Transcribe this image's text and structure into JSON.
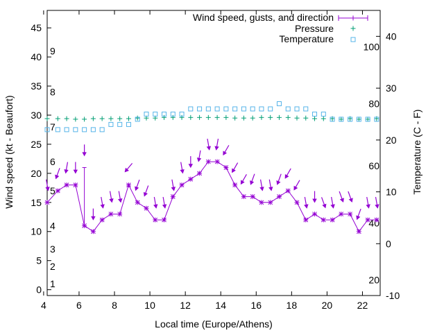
{
  "chart_data": {
    "type": "line",
    "title": "",
    "xlabel": "Local time (Europe/Athens)",
    "ylabel": "Wind speed (kt - Beaufort)",
    "y2label": "Temperature (C - F)",
    "xlim": [
      4.2,
      23.0
    ],
    "ylim": [
      -1,
      48
    ],
    "y2lim": [
      -10,
      45
    ],
    "x_ticks": [
      4,
      6,
      8,
      10,
      12,
      14,
      16,
      18,
      20,
      22
    ],
    "y_ticks": [
      0,
      5,
      10,
      15,
      20,
      25,
      30,
      35,
      40,
      45
    ],
    "y2_ticks": [
      -10,
      0,
      10,
      20,
      30,
      40
    ],
    "beaufort_labels": [
      {
        "kt": 1,
        "label": "1"
      },
      {
        "kt": 4,
        "label": "2"
      },
      {
        "kt": 7,
        "label": "3"
      },
      {
        "kt": 11,
        "label": "4"
      },
      {
        "kt": 17,
        "label": "5"
      },
      {
        "kt": 22,
        "label": "6"
      },
      {
        "kt": 28,
        "label": "7"
      },
      {
        "kt": 34,
        "label": "8"
      },
      {
        "kt": 41,
        "label": "9"
      }
    ],
    "fahrenheit_labels": [
      {
        "c": -7,
        "label": "20"
      },
      {
        "c": 4,
        "label": "40"
      },
      {
        "c": 15,
        "label": "60"
      },
      {
        "c": 27,
        "label": "80"
      },
      {
        "c": 38,
        "label": "100"
      }
    ],
    "legend_placement": "top-right",
    "grid": false,
    "colors": {
      "wind": "#9400d3",
      "pressure": "#009e73",
      "temperature": "#56b4e9"
    },
    "series": [
      {
        "name": "Wind speed, gusts, and direction",
        "type": "line",
        "axis": "left",
        "x": [
          4.2,
          4.8,
          5.3,
          5.8,
          6.3,
          6.8,
          7.3,
          7.8,
          8.3,
          8.8,
          9.3,
          9.8,
          10.3,
          10.8,
          11.3,
          11.8,
          12.3,
          12.8,
          13.3,
          13.8,
          14.3,
          14.8,
          15.3,
          15.8,
          16.3,
          16.8,
          17.3,
          17.8,
          18.3,
          18.8,
          19.3,
          19.8,
          20.3,
          20.8,
          21.3,
          21.8,
          22.3,
          22.8
        ],
        "values": [
          15,
          17,
          18,
          18,
          11,
          10,
          12,
          13,
          13,
          18,
          15,
          14,
          12,
          12,
          16,
          18,
          19,
          20,
          22,
          22,
          21,
          18,
          16,
          16,
          15,
          15,
          16,
          17,
          15,
          12,
          13,
          12,
          12,
          13,
          13,
          10,
          12,
          12
        ],
        "gusts": [
          18,
          20,
          21,
          21,
          24,
          13,
          15,
          16,
          16,
          21,
          18,
          17,
          15,
          15,
          18,
          21,
          22,
          23,
          25,
          25,
          24,
          21,
          19,
          19,
          18,
          18,
          19,
          20,
          18,
          15,
          16,
          15,
          15,
          16,
          16,
          13,
          15,
          15
        ],
        "direction_deg": [
          350,
          20,
          10,
          0,
          0,
          0,
          350,
          350,
          350,
          40,
          20,
          20,
          350,
          350,
          350,
          350,
          0,
          10,
          350,
          10,
          30,
          30,
          30,
          20,
          350,
          350,
          20,
          30,
          30,
          350,
          0,
          340,
          350,
          340,
          340,
          20,
          350,
          350
        ]
      },
      {
        "name": "Pressure",
        "type": "scatter",
        "axis": "left",
        "x": [
          4.2,
          4.8,
          5.3,
          5.8,
          6.3,
          6.8,
          7.3,
          7.8,
          8.3,
          8.8,
          9.3,
          9.8,
          10.3,
          10.8,
          11.3,
          11.8,
          12.3,
          12.8,
          13.3,
          13.8,
          14.3,
          14.8,
          15.3,
          15.8,
          16.3,
          16.8,
          17.3,
          17.8,
          18.3,
          18.8,
          19.3,
          19.8,
          20.3,
          20.8,
          21.3,
          21.8,
          22.3,
          22.8
        ],
        "values": [
          29.4,
          29.4,
          29.4,
          29.3,
          29.3,
          29.4,
          29.4,
          29.4,
          29.4,
          29.4,
          29.5,
          29.5,
          29.5,
          29.6,
          29.6,
          29.6,
          29.6,
          29.6,
          29.6,
          29.6,
          29.6,
          29.5,
          29.5,
          29.5,
          29.6,
          29.6,
          29.6,
          29.6,
          29.5,
          29.5,
          29.4,
          29.4,
          29.4,
          29.3,
          29.4,
          29.3,
          29.3,
          29.4
        ]
      },
      {
        "name": "Temperature",
        "type": "scatter",
        "axis": "right",
        "x": [
          4.2,
          4.8,
          5.3,
          5.8,
          6.3,
          6.8,
          7.3,
          7.8,
          8.3,
          8.8,
          9.3,
          9.8,
          10.3,
          10.8,
          11.3,
          11.8,
          12.3,
          12.8,
          13.3,
          13.8,
          14.3,
          14.8,
          15.3,
          15.8,
          16.3,
          16.8,
          17.3,
          17.8,
          18.3,
          18.8,
          19.3,
          19.8,
          20.3,
          20.8,
          21.3,
          21.8,
          22.3,
          22.8
        ],
        "values": [
          22,
          22,
          22,
          22,
          22,
          22,
          22,
          23,
          23,
          23,
          24,
          25,
          25,
          25,
          25,
          25,
          26,
          26,
          26,
          26,
          26,
          26,
          26,
          26,
          26,
          26,
          27,
          26,
          26,
          26,
          25,
          25,
          24,
          24,
          24,
          24,
          24,
          24
        ]
      }
    ]
  }
}
